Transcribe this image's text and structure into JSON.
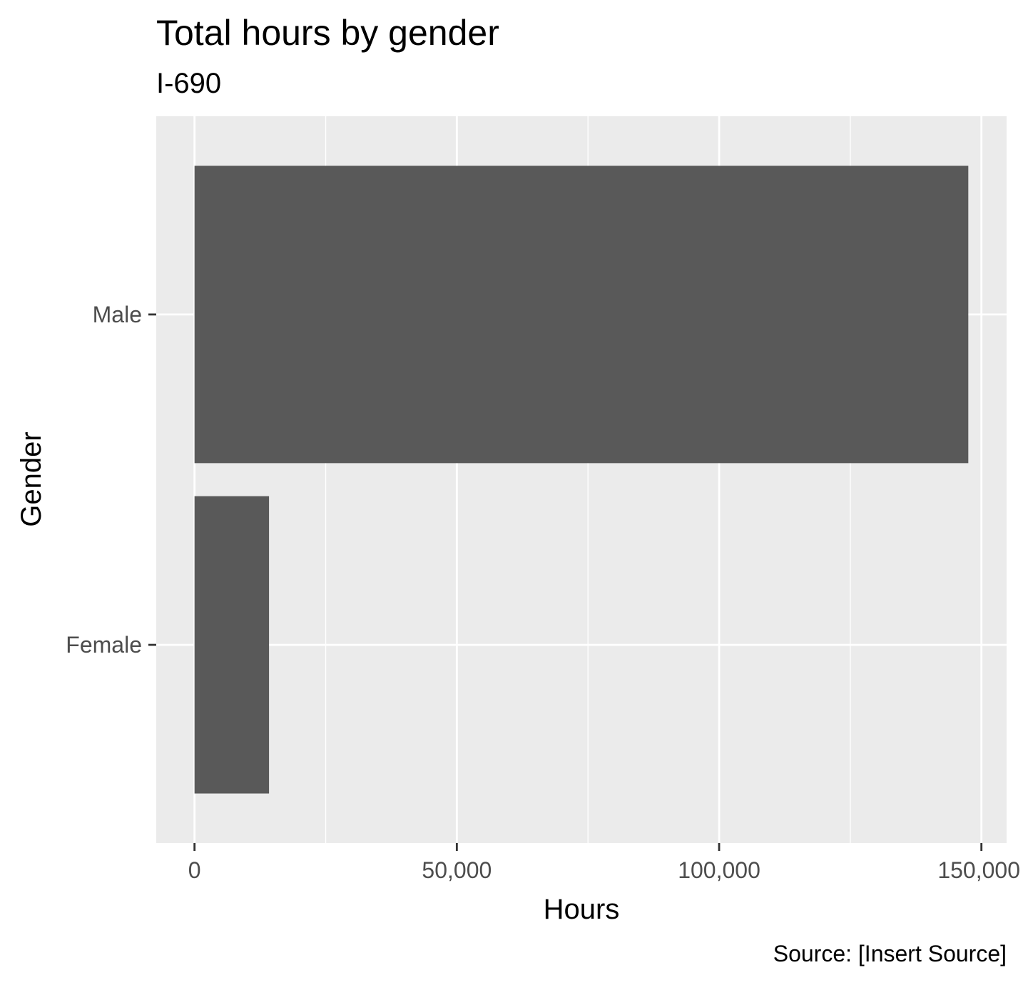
{
  "chart_data": {
    "type": "bar",
    "orientation": "horizontal",
    "title": "Total hours by gender",
    "subtitle": "I-690",
    "xlabel": "Hours",
    "ylabel": "Gender",
    "caption": "Source: [Insert Source]",
    "categories": [
      "Female",
      "Male"
    ],
    "values": [
      14200,
      147500
    ],
    "xlim": [
      -7300,
      154800
    ],
    "xticks": [
      0,
      50000,
      100000,
      150000
    ],
    "xtick_labels": [
      "0",
      "50,000",
      "100,000",
      "150,000"
    ],
    "grid": true,
    "legend": "none",
    "colors": {
      "bar": "#595959",
      "panel": "#ebebeb",
      "grid": "#ffffff",
      "tick_text": "#4d4d4d",
      "tick_mark": "#333333"
    }
  }
}
